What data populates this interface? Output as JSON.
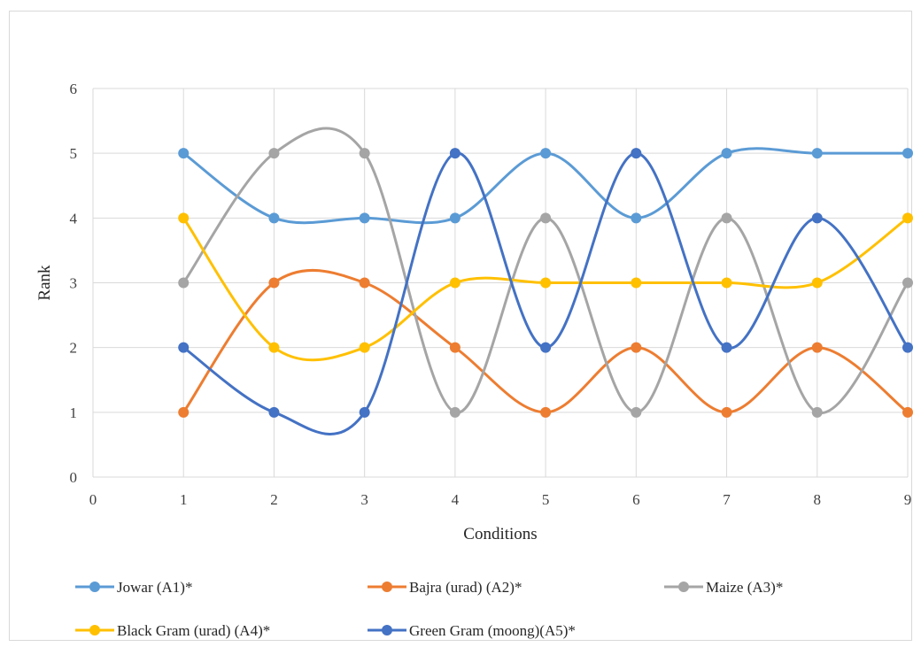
{
  "chart_data": {
    "type": "line",
    "smooth": true,
    "xlabel": "Conditions",
    "ylabel": "Rank",
    "xlim": [
      0,
      9
    ],
    "ylim": [
      0,
      6
    ],
    "x_ticks": [
      "0",
      "1",
      "2",
      "3",
      "4",
      "5",
      "6",
      "7",
      "8",
      "9"
    ],
    "y_ticks": [
      "0",
      "1",
      "2",
      "3",
      "4",
      "5",
      "6"
    ],
    "grid": "both",
    "legend_position": "bottom",
    "x": [
      1,
      2,
      3,
      4,
      5,
      6,
      7,
      8,
      9
    ],
    "series": [
      {
        "name": "Jowar (A1)*",
        "color": "#5b9bd5",
        "values": [
          5,
          4,
          4,
          4,
          5,
          4,
          5,
          5,
          5
        ]
      },
      {
        "name": "Bajra (urad) (A2)*",
        "color": "#ed7d31",
        "values": [
          1,
          3,
          3,
          2,
          1,
          2,
          1,
          2,
          1
        ]
      },
      {
        "name": "Maize (A3)*",
        "color": "#a5a5a5",
        "values": [
          3,
          5,
          5,
          1,
          4,
          1,
          4,
          1,
          3
        ]
      },
      {
        "name": "Black Gram (urad) (A4)*",
        "color": "#ffc000",
        "values": [
          4,
          2,
          2,
          3,
          3,
          3,
          3,
          3,
          4
        ]
      },
      {
        "name": "Green Gram (moong)(A5)*",
        "color": "#4472c4",
        "values": [
          2,
          1,
          1,
          5,
          2,
          5,
          2,
          4,
          2
        ]
      }
    ]
  }
}
